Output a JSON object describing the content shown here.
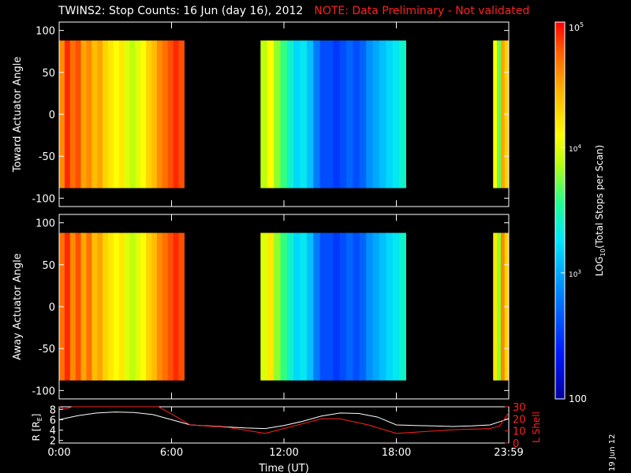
{
  "header": {
    "title": "TWINS2: Stop Counts: 16 Jun (day  16), 2012",
    "note": "NOTE: Data Preliminary - Not validated"
  },
  "generated_stamp": "19 Jun 12",
  "colors": {
    "background": "#000000",
    "axes": "#ffffff",
    "note": "#ff2020",
    "r_line": "#ffffff",
    "lshell_line": "#ff2020"
  },
  "chart_data": [
    {
      "type": "heatmap",
      "panel": "toward",
      "ylabel": "Toward Actuator Angle",
      "xlim_hours": [
        0,
        24
      ],
      "ylim": [
        -110,
        110
      ],
      "yticks": [
        -100,
        -50,
        0,
        50,
        100
      ],
      "data_rows_angle": [
        -88,
        88
      ],
      "segments": [
        {
          "start": "0:00",
          "end": "6:40",
          "log10_counts": [
            4.6,
            4.9,
            4.7,
            4.8,
            4.5,
            4.6,
            4.4,
            4.5,
            4.3,
            4.2,
            4.1,
            4.2,
            4.0,
            3.9,
            4.0,
            4.1,
            4.3,
            4.4,
            4.6,
            4.7,
            4.8,
            4.9,
            4.8
          ]
        },
        {
          "start": "10:45",
          "end": "18:30",
          "log10_counts": [
            3.9,
            4.1,
            3.8,
            3.6,
            3.4,
            3.2,
            3.3,
            3.1,
            2.8,
            2.6,
            2.6,
            2.5,
            2.6,
            2.7,
            2.6,
            2.7,
            2.9,
            3.0,
            3.1,
            3.2,
            3.3,
            3.4
          ]
        },
        {
          "start": "23:10",
          "end": "23:59",
          "log10_counts": [
            4.1,
            3.7,
            4.5,
            4.3
          ]
        }
      ]
    },
    {
      "type": "heatmap",
      "panel": "away",
      "ylabel": "Away Actuator Angle",
      "xlim_hours": [
        0,
        24
      ],
      "ylim": [
        -110,
        110
      ],
      "yticks": [
        -100,
        -50,
        0,
        50,
        100
      ],
      "data_rows_angle": [
        -88,
        88
      ],
      "segments": [
        {
          "start": "0:00",
          "end": "6:40",
          "log10_counts": [
            4.7,
            4.9,
            4.6,
            4.8,
            4.5,
            4.7,
            4.4,
            4.5,
            4.3,
            4.2,
            4.1,
            4.2,
            4.0,
            3.9,
            4.0,
            4.1,
            4.3,
            4.4,
            4.6,
            4.7,
            4.8,
            4.9,
            4.8
          ]
        },
        {
          "start": "10:45",
          "end": "18:30",
          "log10_counts": [
            4.0,
            4.2,
            3.8,
            3.6,
            3.4,
            3.2,
            3.3,
            3.1,
            2.8,
            2.6,
            2.6,
            2.5,
            2.6,
            2.7,
            2.6,
            2.7,
            2.9,
            3.0,
            3.1,
            3.2,
            3.3,
            3.4
          ]
        },
        {
          "start": "23:10",
          "end": "23:59",
          "log10_counts": [
            4.2,
            3.8,
            4.6,
            4.3
          ]
        }
      ]
    },
    {
      "type": "line",
      "panel": "orbit",
      "ylabel": "R [R",
      "ylabel_subscript": "E",
      "ylabel_close": "]",
      "y2label": "L Shell",
      "xlabel": "Time (UT)",
      "xtick_labels": [
        "0:00",
        "6:00",
        "12:00",
        "18:00",
        "23:59"
      ],
      "xtick_hours": [
        0,
        6,
        12,
        18,
        24
      ],
      "ylim": [
        1.5,
        8.5
      ],
      "yticks": [
        2,
        4,
        6,
        8
      ],
      "y2lim": [
        0,
        30
      ],
      "y2ticks": [
        0,
        10,
        20,
        30
      ],
      "series": [
        {
          "axis": "left",
          "x_hours": [
            0,
            1,
            2,
            3,
            4,
            5,
            6,
            7,
            8,
            9,
            10,
            11,
            12,
            13,
            14,
            15,
            16,
            17,
            18,
            19,
            20,
            21,
            22,
            23,
            24
          ],
          "y": [
            6.0,
            6.8,
            7.3,
            7.5,
            7.4,
            7.0,
            6.0,
            5.0,
            4.8,
            4.6,
            4.4,
            4.3,
            4.9,
            5.7,
            6.7,
            7.3,
            7.2,
            6.5,
            5.0,
            4.9,
            4.8,
            4.7,
            4.8,
            5.0,
            6.2
          ]
        },
        {
          "axis": "right",
          "x_hours": [
            0,
            0.3,
            0.7,
            5.3,
            6.0,
            7.0,
            9.0,
            11.0,
            12.5,
            14.0,
            15.0,
            16.5,
            18.0,
            19.0,
            21.0,
            23.0,
            23.5,
            24.0
          ],
          "y": [
            30,
            28,
            30,
            30,
            24,
            15,
            13,
            8,
            14,
            20,
            20,
            15,
            8,
            9,
            11,
            12,
            14,
            25
          ]
        }
      ]
    },
    {
      "type": "heatmap",
      "panel": "colorbar",
      "label_parts": [
        "LOG",
        "10",
        "(Total Stops per Scan)"
      ],
      "zlim_log10": [
        2,
        5
      ],
      "tick_labels": [
        "10",
        "5",
        "10",
        "4",
        "10",
        "3",
        "100"
      ]
    }
  ]
}
